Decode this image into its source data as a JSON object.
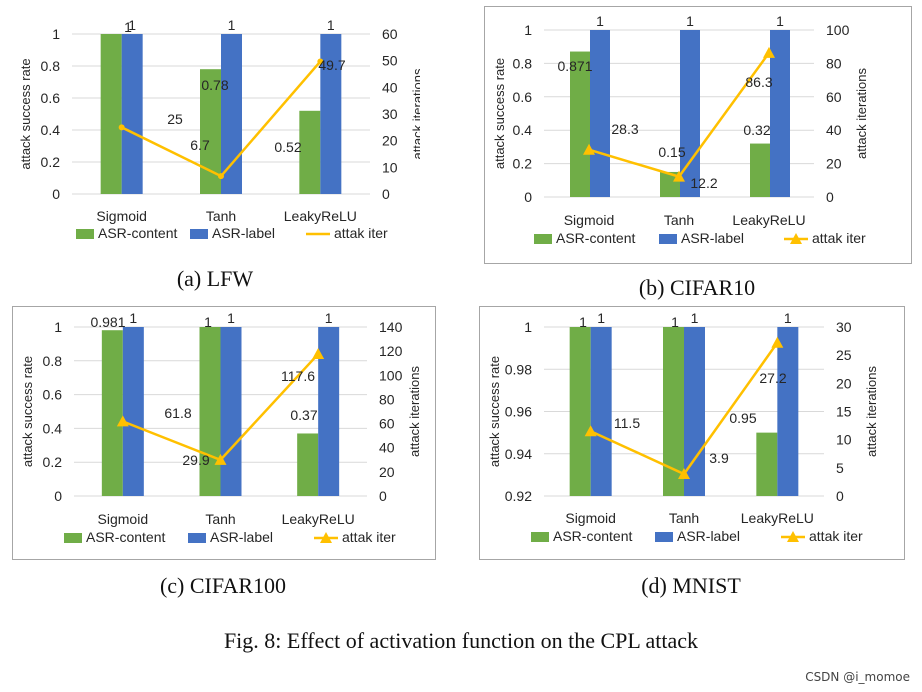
{
  "colors": {
    "content": "#70ad47",
    "label": "#4472c4",
    "iter": "#ffc000",
    "grid": "#d9d9d9",
    "text": "#262626"
  },
  "legend": {
    "content": "ASR-content",
    "label": "ASR-label",
    "iter": "attak iter"
  },
  "chart_data": [
    {
      "id": "lfw",
      "type": "bar",
      "caption": "(a) LFW",
      "categories": [
        "Sigmoid",
        "Tanh",
        "LeakyReLU"
      ],
      "series": [
        {
          "name": "ASR-content",
          "values": [
            1,
            0.78,
            0.52
          ],
          "labels": [
            "1",
            "0.78",
            "0.52"
          ]
        },
        {
          "name": "ASR-label",
          "values": [
            1,
            1,
            1
          ],
          "labels": [
            "1",
            "1",
            "1"
          ]
        },
        {
          "name": "attak iter",
          "type": "line",
          "axis": "right",
          "marker": false,
          "values": [
            25,
            6.7,
            49.7
          ],
          "labels": [
            "25",
            "6.7",
            "49.7"
          ]
        }
      ],
      "ylabel": "attack success rate",
      "ylim": [
        0,
        1
      ],
      "yticks": [
        0,
        0.2,
        0.4,
        0.6,
        0.8,
        1
      ],
      "ytick_labels": [
        "0",
        "0.2",
        "0.4",
        "0.6",
        "0.8",
        "1"
      ],
      "y2label": "attack iterations",
      "y2lim": [
        0,
        60
      ],
      "y2ticks": [
        0,
        10,
        20,
        30,
        40,
        50,
        60
      ],
      "y2tick_labels": [
        "0",
        "10",
        "20",
        "30",
        "40",
        "50",
        "60"
      ],
      "grid": true
    },
    {
      "id": "cifar10",
      "type": "bar",
      "caption": "(b) CIFAR10",
      "categories": [
        "Sigmoid",
        "Tanh",
        "LeakyReLU"
      ],
      "series": [
        {
          "name": "ASR-content",
          "values": [
            0.871,
            0.15,
            0.32
          ],
          "labels": [
            "0.871",
            "0.15",
            "0.32"
          ]
        },
        {
          "name": "ASR-label",
          "values": [
            1,
            1,
            1
          ],
          "labels": [
            "1",
            "1",
            "1"
          ]
        },
        {
          "name": "attak iter",
          "type": "line",
          "axis": "right",
          "marker": true,
          "values": [
            28.3,
            12.2,
            86.3
          ],
          "labels": [
            "28.3",
            "12.2",
            "86.3"
          ]
        }
      ],
      "ylabel": "attack success rate",
      "ylim": [
        0,
        1
      ],
      "yticks": [
        0,
        0.2,
        0.4,
        0.6,
        0.8,
        1
      ],
      "ytick_labels": [
        "0",
        "0.2",
        "0.4",
        "0.6",
        "0.8",
        "1"
      ],
      "y2label": "attack iterations",
      "y2lim": [
        0,
        100
      ],
      "y2ticks": [
        0,
        20,
        40,
        60,
        80,
        100
      ],
      "y2tick_labels": [
        "0",
        "20",
        "40",
        "60",
        "80",
        "100"
      ],
      "grid": true
    },
    {
      "id": "cifar100",
      "type": "bar",
      "caption": "(c) CIFAR100",
      "categories": [
        "Sigmoid",
        "Tanh",
        "LeakyReLU"
      ],
      "series": [
        {
          "name": "ASR-content",
          "values": [
            0.981,
            1,
            0.37
          ],
          "labels": [
            "0.981",
            "1",
            "0.37"
          ]
        },
        {
          "name": "ASR-label",
          "values": [
            1,
            1,
            1
          ],
          "labels": [
            "1",
            "1",
            "1"
          ]
        },
        {
          "name": "attak iter",
          "type": "line",
          "axis": "right",
          "marker": true,
          "values": [
            61.8,
            29.9,
            117.6
          ],
          "labels": [
            "61.8",
            "29.9",
            "117.6"
          ]
        }
      ],
      "ylabel": "attack success rate",
      "ylim": [
        0,
        1
      ],
      "yticks": [
        0,
        0.2,
        0.4,
        0.6,
        0.8,
        1
      ],
      "ytick_labels": [
        "0",
        "0.2",
        "0.4",
        "0.6",
        "0.8",
        "1"
      ],
      "y2label": "attack iterations",
      "y2lim": [
        0,
        140
      ],
      "y2ticks": [
        0,
        20,
        40,
        60,
        80,
        100,
        120,
        140
      ],
      "y2tick_labels": [
        "0",
        "20",
        "40",
        "60",
        "80",
        "100",
        "120",
        "140"
      ],
      "grid": true
    },
    {
      "id": "mnist",
      "type": "bar",
      "caption": "(d) MNIST",
      "categories": [
        "Sigmoid",
        "Tanh",
        "LeakyReLU"
      ],
      "series": [
        {
          "name": "ASR-content",
          "values": [
            1,
            1,
            0.95
          ],
          "labels": [
            "1",
            "1",
            "0.95"
          ]
        },
        {
          "name": "ASR-label",
          "values": [
            1,
            1,
            1
          ],
          "labels": [
            "1",
            "1",
            "1"
          ]
        },
        {
          "name": "attak iter",
          "type": "line",
          "axis": "right",
          "marker": true,
          "values": [
            11.5,
            3.9,
            27.2
          ],
          "labels": [
            "11.5",
            "3.9",
            "27.2"
          ]
        }
      ],
      "ylabel": "attack success rate",
      "ylim": [
        0.92,
        1
      ],
      "yticks": [
        0.92,
        0.94,
        0.96,
        0.98,
        1
      ],
      "ytick_labels": [
        "0.92",
        "0.94",
        "0.96",
        "0.98",
        "1"
      ],
      "y2label": "attack iterations",
      "y2lim": [
        0,
        30
      ],
      "y2ticks": [
        0,
        5,
        10,
        15,
        20,
        25,
        30
      ],
      "y2tick_labels": [
        "0",
        "5",
        "10",
        "15",
        "20",
        "25",
        "30"
      ],
      "grid": true
    }
  ],
  "figure_caption": "Fig. 8: Effect of activation function on the CPL attack",
  "watermark": "CSDN @i_momoe"
}
